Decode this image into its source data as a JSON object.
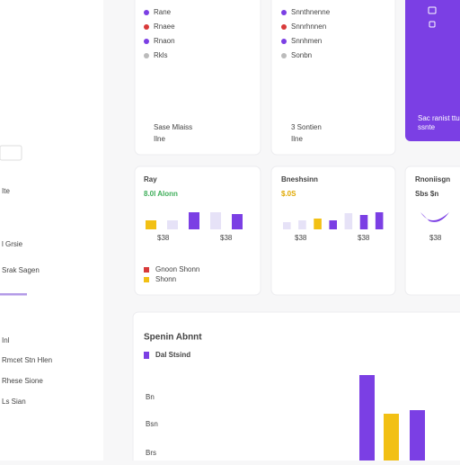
{
  "sidebar": {
    "items": [
      "Ite",
      "l Grsie",
      "Srak Sagen",
      "Inl",
      "Rmcet Stn Hlen",
      "Rhese Sione",
      "Ls Sian"
    ]
  },
  "top_cards": [
    {
      "items": [
        "Rane",
        "Rnaee",
        "Rnaon",
        "Rkls"
      ],
      "footer": [
        "Sase Mlaiss",
        "Ilne"
      ]
    },
    {
      "items": [
        "Snnthnenne",
        "Snnrhnnen",
        "Snnhmen",
        "Sonbn"
      ],
      "footer": [
        "3 Sontien",
        "Ilne"
      ]
    }
  ],
  "promo": {
    "text": [
      "Sac ranist ttu",
      "ssnte"
    ]
  },
  "stat_cards": [
    {
      "title": "Ray",
      "value": "8.0l Alonn",
      "value_color": "#3fae5a",
      "bars": [
        10,
        10,
        19,
        19,
        17
      ],
      "bar_colors": [
        "#f2c014",
        "#e6e2f7",
        "#7b3fe4",
        "#e6e2f7",
        "#7b3fe4"
      ],
      "labels": [
        "$38",
        "$38"
      ],
      "legend": [
        "Gnoon Shonn",
        "Shonn"
      ],
      "legend_colors": [
        "#d83a3a",
        "#f2c014"
      ]
    },
    {
      "title": "Bneshsinn",
      "value": "$.0S",
      "value_color": "#e0a800",
      "bars": [
        8,
        10,
        12,
        10,
        18,
        16,
        19
      ],
      "bar_colors": [
        "#e6e2f7",
        "#e6e2f7",
        "#f2c014",
        "#7b3fe4",
        "#e6e2f7",
        "#7b3fe4",
        "#7b3fe4"
      ],
      "labels": [
        "$38",
        "$38"
      ]
    },
    {
      "title": "Rnoniisgn",
      "value": "Sbs $n",
      "labels": [
        "$38"
      ]
    }
  ],
  "spending": {
    "title": "Spenin Abnnt",
    "subtitle": "Dal Stsind",
    "axis_labels": [
      "Bn",
      "Bsn",
      "Brs"
    ],
    "bars": [
      95,
      52,
      56
    ],
    "bar_colors": [
      "#7b3fe4",
      "#f2c014",
      "#7b3fe4"
    ]
  }
}
